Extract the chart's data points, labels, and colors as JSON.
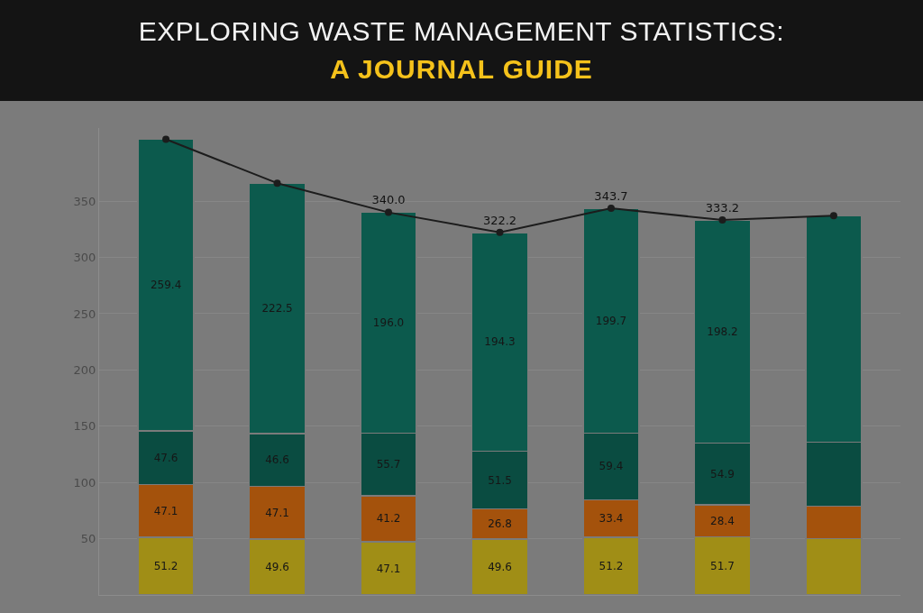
{
  "chart_data": {
    "type": "bar",
    "title": "EXPLORING WASTE MANAGEMENT STATISTICS:",
    "subtitle": "A JOURNAL GUIDE",
    "categories": [
      null,
      null,
      null,
      null,
      null,
      null,
      null
    ],
    "stacked": true,
    "series": [
      {
        "color": "#a08e16",
        "values": [
          51.2,
          49.6,
          47.1,
          49.6,
          51.2,
          51.7,
          50
        ],
        "value_labels": [
          "51.2",
          "49.6",
          "47.1",
          "49.6",
          "51.2",
          "51.7",
          null
        ]
      },
      {
        "color": "#a4520c",
        "values": [
          47.1,
          47.1,
          41.2,
          26.8,
          33.4,
          28.4,
          29
        ],
        "value_labels": [
          "47.1",
          "47.1",
          "41.2",
          "26.8",
          "33.4",
          "28.4",
          null
        ]
      },
      {
        "color": "#0a4c41",
        "values": [
          47.6,
          46.6,
          55.7,
          51.5,
          59.4,
          54.9,
          57
        ],
        "value_labels": [
          "47.6",
          "46.6",
          "55.7",
          "51.5",
          "59.4",
          "54.9",
          null
        ]
      },
      {
        "color": "#0c5a4d",
        "values": [
          259.4,
          222.5,
          196.0,
          194.3,
          199.7,
          198.2,
          201
        ],
        "value_labels": [
          "259.4",
          "222.5",
          "196.0",
          "194.3",
          "199.7",
          "198.2",
          null
        ]
      },
      {
        "type": "line",
        "color": "#1c1c1c",
        "values": [
          405,
          366,
          340.0,
          322.2,
          343.7,
          333.2,
          337
        ],
        "value_labels": [
          null,
          null,
          "340.0",
          "322.2",
          "343.7",
          "333.2",
          null
        ]
      }
    ],
    "ylim": [
      0,
      415
    ],
    "yticks": [
      50,
      100,
      150,
      200,
      250,
      300,
      350
    ],
    "grid": "y",
    "marker": "circle",
    "line_style": "solid",
    "tick_labels": "y"
  }
}
